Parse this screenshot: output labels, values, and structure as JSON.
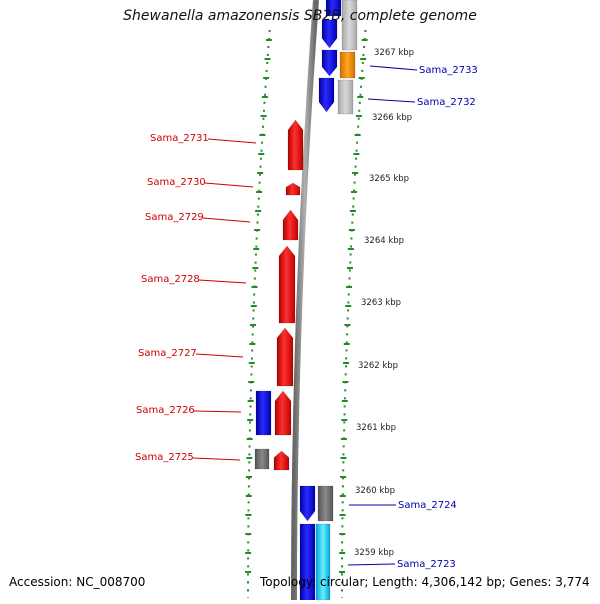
{
  "title": "Shewanella amazonensis SB2B, complete genome",
  "accession": "Accession: NC_008700",
  "topology": "Topology: circular; Length: 4,306,142 bp; Genes: 3,774",
  "colors": {
    "minus_strand_label": "#cc0000",
    "plus_strand_label": "#0000aa",
    "gene_red": "#ff1a1a",
    "gene_blue": "#1a1aff",
    "gene_gray": "#777777",
    "gene_light_gray": "#c0c0c0",
    "gene_orange": "#ff9900",
    "gene_cyan": "#33ddff",
    "tick_green": "#228b22"
  },
  "scale_ticks": [
    "3267 kbp",
    "3266 kbp",
    "3265 kbp",
    "3264 kbp",
    "3263 kbp",
    "3262 kbp",
    "3261 kbp",
    "3260 kbp",
    "3259 kbp"
  ],
  "left_genes": [
    {
      "label": "Sama_2731",
      "color": "red"
    },
    {
      "label": "Sama_2730",
      "color": "red"
    },
    {
      "label": "Sama_2729",
      "color": "red"
    },
    {
      "label": "Sama_2728",
      "color": "red"
    },
    {
      "label": "Sama_2727",
      "color": "red"
    },
    {
      "label": "Sama_2726",
      "color": "red"
    },
    {
      "label": "Sama_2725",
      "color": "red"
    }
  ],
  "right_genes": [
    {
      "label": "Sama_2733",
      "color": "blue"
    },
    {
      "label": "Sama_2732",
      "color": "blue"
    },
    {
      "label": "Sama_2724",
      "color": "blue"
    },
    {
      "label": "Sama_2723",
      "color": "blue"
    }
  ]
}
